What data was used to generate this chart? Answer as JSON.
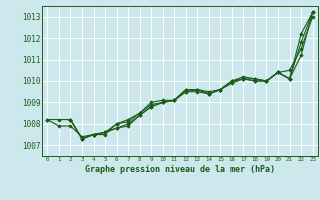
{
  "title": "Graphe pression niveau de la mer (hPa)",
  "bg_color": "#cce8ec",
  "grid_color": "#ffffff",
  "line_color": "#1a5c1a",
  "marker_color": "#1a5c1a",
  "xlim": [
    -0.5,
    23.5
  ],
  "ylim": [
    1006.5,
    1013.5
  ],
  "yticks": [
    1007,
    1008,
    1009,
    1010,
    1011,
    1012,
    1013
  ],
  "xticks": [
    0,
    1,
    2,
    3,
    4,
    5,
    6,
    7,
    8,
    9,
    10,
    11,
    12,
    13,
    14,
    15,
    16,
    17,
    18,
    19,
    20,
    21,
    22,
    23
  ],
  "series": [
    {
      "x": [
        0,
        1,
        2,
        3,
        4,
        5,
        6,
        7,
        8,
        9,
        10,
        11,
        12,
        13,
        14,
        15,
        16,
        17,
        18,
        19,
        20,
        21,
        22,
        23
      ],
      "y": [
        1008.2,
        1008.2,
        1008.2,
        1007.3,
        1007.5,
        1007.5,
        1008.0,
        1008.1,
        1008.5,
        1008.9,
        1009.0,
        1009.1,
        1009.5,
        1009.6,
        1009.5,
        1009.6,
        1010.0,
        1010.1,
        1010.0,
        1010.0,
        1010.4,
        1010.1,
        1012.2,
        1013.2
      ]
    },
    {
      "x": [
        0,
        1,
        2,
        3,
        4,
        5,
        6,
        7,
        8,
        9,
        10,
        11,
        12,
        13,
        14,
        15,
        16,
        17,
        18,
        19,
        20,
        21,
        22,
        23
      ],
      "y": [
        1008.2,
        1007.9,
        1007.9,
        1007.4,
        1007.5,
        1007.6,
        1007.8,
        1007.9,
        1008.4,
        1008.8,
        1009.0,
        1009.1,
        1009.5,
        1009.5,
        1009.4,
        1009.6,
        1009.9,
        1010.1,
        1010.0,
        1010.0,
        1010.4,
        1010.1,
        1011.2,
        1013.2
      ]
    },
    {
      "x": [
        2,
        3,
        4,
        5,
        6,
        7,
        8,
        9,
        10,
        11,
        12,
        13,
        14,
        15,
        16,
        17,
        18,
        19,
        20,
        21,
        22,
        23
      ],
      "y": [
        1008.2,
        1007.3,
        1007.5,
        1007.6,
        1007.8,
        1008.0,
        1008.4,
        1008.8,
        1009.0,
        1009.1,
        1009.6,
        1009.6,
        1009.4,
        1009.6,
        1010.0,
        1010.1,
        1010.1,
        1010.0,
        1010.4,
        1010.1,
        1011.8,
        1013.2
      ]
    },
    {
      "x": [
        2,
        3,
        4,
        5,
        6,
        7,
        8,
        9,
        10,
        11,
        12,
        13,
        14,
        15,
        16,
        17,
        18,
        19,
        20,
        21,
        22,
        23
      ],
      "y": [
        1008.2,
        1007.3,
        1007.5,
        1007.6,
        1008.0,
        1008.2,
        1008.5,
        1009.0,
        1009.1,
        1009.1,
        1009.6,
        1009.6,
        1009.4,
        1009.6,
        1010.0,
        1010.2,
        1010.1,
        1010.0,
        1010.4,
        1010.5,
        1011.5,
        1013.0
      ]
    }
  ]
}
